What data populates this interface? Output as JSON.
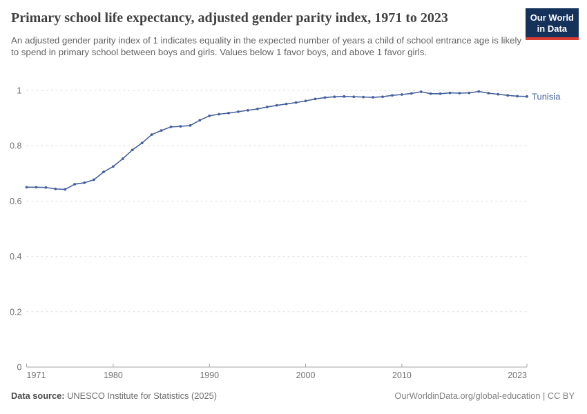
{
  "header": {
    "title": "Primary school life expectancy, adjusted gender parity index, 1971 to 2023",
    "subtitle": "An adjusted gender parity index of 1 indicates equality in the expected number of years a child of school entrance age is likely to spend in primary school between boys and girls. Values below 1 favor boys, and above 1 favor girls.",
    "logo_line1": "Our World",
    "logo_line2": "in Data"
  },
  "chart_data": {
    "type": "line",
    "title": "Primary school life expectancy, adjusted gender parity index, 1971 to 2023",
    "xlabel": "",
    "ylabel": "",
    "ylim": [
      0,
      1
    ],
    "yticks": [
      0,
      0.2,
      0.4,
      0.6,
      0.8,
      1
    ],
    "ytick_labels": [
      "0",
      "0.2",
      "0.4",
      "0.6",
      "0.8",
      "1"
    ],
    "xticks": [
      1971,
      1980,
      1990,
      2000,
      2010,
      2023
    ],
    "grid": "horizontal-dashed",
    "legend_position": "end-of-line",
    "series": [
      {
        "name": "Tunisia",
        "years": [
          1971,
          1972,
          1973,
          1974,
          1975,
          1976,
          1977,
          1978,
          1979,
          1980,
          1981,
          1982,
          1983,
          1984,
          1985,
          1986,
          1987,
          1988,
          1989,
          1990,
          1991,
          1992,
          1993,
          1994,
          1995,
          1996,
          1997,
          1998,
          1999,
          2000,
          2001,
          2002,
          2003,
          2004,
          2005,
          2006,
          2007,
          2008,
          2009,
          2010,
          2011,
          2012,
          2013,
          2014,
          2015,
          2016,
          2017,
          2018,
          2019,
          2020,
          2021,
          2022,
          2023
        ],
        "values": [
          0.65,
          0.65,
          0.649,
          0.644,
          0.642,
          0.661,
          0.666,
          0.677,
          0.705,
          0.725,
          0.753,
          0.785,
          0.81,
          0.84,
          0.855,
          0.868,
          0.87,
          0.873,
          0.892,
          0.908,
          0.914,
          0.918,
          0.923,
          0.928,
          0.933,
          0.94,
          0.946,
          0.951,
          0.956,
          0.962,
          0.969,
          0.974,
          0.977,
          0.978,
          0.977,
          0.976,
          0.975,
          0.977,
          0.982,
          0.985,
          0.989,
          0.995,
          0.988,
          0.988,
          0.991,
          0.99,
          0.991,
          0.996,
          0.99,
          0.986,
          0.982,
          0.979,
          0.978
        ]
      }
    ]
  },
  "footer": {
    "datasource_label": "Data source:",
    "datasource_text": " UNESCO Institute for Statistics (2025)",
    "link_text": "OurWorldinData.org/global-education | CC BY"
  },
  "colors": {
    "line": "#45619d",
    "grid": "#dddddd",
    "axis": "#a6a6a6",
    "tick_label": "#707070",
    "title": "#414141",
    "subtitle": "#636363",
    "logo_bg": "#15325b",
    "logo_accent": "#d73c34",
    "footer": "#6e6e6e"
  }
}
